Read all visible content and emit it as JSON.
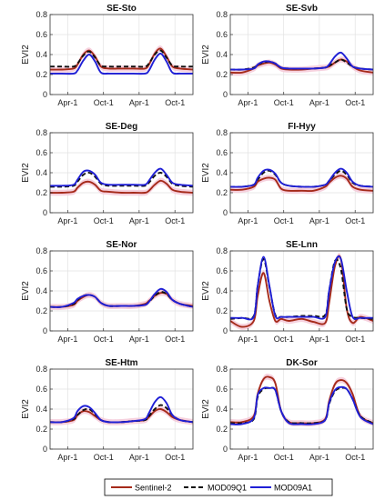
{
  "chart_data": {
    "type": "line",
    "ylabel": "EVI2",
    "xlim": [
      0,
      730
    ],
    "ylim": [
      0,
      0.8
    ],
    "yticks": [
      0,
      0.2,
      0.4,
      0.6,
      0.8
    ],
    "ytick_labels": [
      "0",
      "0.2",
      "0.4",
      "0.6",
      "0.8"
    ],
    "xticks": [
      90,
      273,
      455,
      638
    ],
    "xtick_labels": [
      "Apr-1",
      "Oct-1",
      "Apr-1",
      "Oct-1"
    ],
    "grid": true,
    "legend_position": "bottom",
    "series_styles": [
      {
        "name": "Sentinel-2",
        "color": "#a52a1a",
        "dash": ""
      },
      {
        "name": "MOD09Q1",
        "color": "#111111",
        "dash": "5,3"
      },
      {
        "name": "MOD09A1",
        "color": "#1f1fd6",
        "dash": ""
      }
    ],
    "envelope_color": "#f4c9d8",
    "x": [
      0,
      60,
      120,
      140,
      170,
      200,
      230,
      260,
      300,
      365,
      425,
      485,
      505,
      535,
      565,
      595,
      625,
      665,
      730
    ],
    "panels": [
      {
        "title": "SE-Sto",
        "series": [
          {
            "name": "Sentinel-2",
            "values": [
              0.25,
              0.25,
              0.26,
              0.3,
              0.4,
              0.44,
              0.38,
              0.28,
              0.26,
              0.26,
              0.26,
              0.26,
              0.3,
              0.41,
              0.46,
              0.38,
              0.28,
              0.26,
              0.25
            ]
          },
          {
            "name": "MOD09Q1",
            "values": [
              0.28,
              0.28,
              0.28,
              0.31,
              0.39,
              0.43,
              0.37,
              0.29,
              0.28,
              0.28,
              0.28,
              0.28,
              0.31,
              0.4,
              0.44,
              0.37,
              0.29,
              0.28,
              0.28
            ]
          },
          {
            "name": "MOD09A1",
            "values": [
              0.21,
              0.21,
              0.21,
              0.24,
              0.34,
              0.4,
              0.33,
              0.22,
              0.21,
              0.21,
              0.21,
              0.21,
              0.24,
              0.35,
              0.41,
              0.33,
              0.22,
              0.21,
              0.21
            ]
          }
        ]
      },
      {
        "title": "SE-Svb",
        "series": [
          {
            "name": "Sentinel-2",
            "values": [
              0.22,
              0.22,
              0.26,
              0.29,
              0.31,
              0.32,
              0.3,
              0.26,
              0.25,
              0.25,
              0.26,
              0.27,
              0.28,
              0.32,
              0.35,
              0.33,
              0.28,
              0.24,
              0.22
            ]
          },
          {
            "name": "MOD09Q1",
            "values": [
              0.25,
              0.25,
              0.27,
              0.3,
              0.32,
              0.33,
              0.31,
              0.27,
              0.26,
              0.26,
              0.26,
              0.27,
              0.29,
              0.32,
              0.35,
              0.32,
              0.28,
              0.26,
              0.25
            ]
          },
          {
            "name": "MOD09A1",
            "values": [
              0.25,
              0.25,
              0.26,
              0.3,
              0.33,
              0.33,
              0.31,
              0.27,
              0.26,
              0.26,
              0.26,
              0.27,
              0.3,
              0.38,
              0.42,
              0.36,
              0.28,
              0.26,
              0.25
            ]
          }
        ]
      },
      {
        "title": "SE-Deg",
        "series": [
          {
            "name": "Sentinel-2",
            "values": [
              0.2,
              0.2,
              0.21,
              0.25,
              0.3,
              0.31,
              0.28,
              0.22,
              0.21,
              0.2,
              0.2,
              0.2,
              0.22,
              0.28,
              0.32,
              0.29,
              0.23,
              0.21,
              0.2
            ]
          },
          {
            "name": "MOD09Q1",
            "values": [
              0.26,
              0.26,
              0.27,
              0.31,
              0.38,
              0.4,
              0.36,
              0.29,
              0.27,
              0.27,
              0.27,
              0.27,
              0.3,
              0.37,
              0.4,
              0.36,
              0.29,
              0.27,
              0.26
            ]
          },
          {
            "name": "MOD09A1",
            "values": [
              0.27,
              0.27,
              0.28,
              0.33,
              0.41,
              0.42,
              0.38,
              0.3,
              0.28,
              0.28,
              0.28,
              0.28,
              0.32,
              0.4,
              0.44,
              0.38,
              0.3,
              0.28,
              0.27
            ]
          }
        ]
      },
      {
        "title": "FI-Hyy",
        "series": [
          {
            "name": "Sentinel-2",
            "values": [
              0.23,
              0.23,
              0.26,
              0.31,
              0.34,
              0.35,
              0.33,
              0.24,
              0.22,
              0.22,
              0.22,
              0.26,
              0.3,
              0.35,
              0.37,
              0.34,
              0.26,
              0.23,
              0.22
            ]
          },
          {
            "name": "MOD09Q1",
            "values": [
              0.26,
              0.26,
              0.28,
              0.33,
              0.4,
              0.42,
              0.38,
              0.3,
              0.27,
              0.26,
              0.26,
              0.28,
              0.32,
              0.38,
              0.42,
              0.38,
              0.3,
              0.27,
              0.26
            ]
          },
          {
            "name": "MOD09A1",
            "values": [
              0.26,
              0.26,
              0.28,
              0.35,
              0.42,
              0.43,
              0.39,
              0.3,
              0.27,
              0.26,
              0.26,
              0.28,
              0.32,
              0.4,
              0.44,
              0.4,
              0.31,
              0.27,
              0.26
            ]
          }
        ]
      },
      {
        "title": "SE-Nor",
        "series": [
          {
            "name": "Sentinel-2",
            "values": [
              0.24,
              0.24,
              0.26,
              0.3,
              0.34,
              0.36,
              0.34,
              0.28,
              0.25,
              0.25,
              0.25,
              0.27,
              0.3,
              0.35,
              0.38,
              0.37,
              0.31,
              0.27,
              0.25
            ]
          },
          {
            "name": "MOD09Q1",
            "values": [
              0.24,
              0.24,
              0.27,
              0.31,
              0.35,
              0.36,
              0.34,
              0.28,
              0.25,
              0.25,
              0.25,
              0.26,
              0.29,
              0.35,
              0.39,
              0.37,
              0.31,
              0.27,
              0.24
            ]
          },
          {
            "name": "MOD09A1",
            "values": [
              0.24,
              0.24,
              0.28,
              0.32,
              0.35,
              0.36,
              0.34,
              0.28,
              0.25,
              0.25,
              0.25,
              0.26,
              0.29,
              0.37,
              0.42,
              0.39,
              0.31,
              0.27,
              0.24
            ]
          }
        ]
      },
      {
        "title": "SE-Lnn",
        "series": [
          {
            "name": "Sentinel-2",
            "values": [
              0.1,
              0.04,
              0.1,
              0.35,
              0.58,
              0.3,
              0.1,
              0.12,
              0.1,
              0.12,
              0.09,
              0.08,
              0.28,
              0.65,
              0.72,
              0.22,
              0.08,
              0.14,
              0.1
            ]
          },
          {
            "name": "MOD09Q1",
            "values": [
              0.12,
              0.13,
              0.15,
              0.45,
              0.72,
              0.44,
              0.16,
              0.14,
              0.14,
              0.15,
              0.15,
              0.16,
              0.4,
              0.7,
              0.62,
              0.22,
              0.14,
              0.13,
              0.12
            ]
          },
          {
            "name": "MOD09A1",
            "values": [
              0.13,
              0.13,
              0.14,
              0.45,
              0.74,
              0.45,
              0.15,
              0.14,
              0.14,
              0.14,
              0.14,
              0.14,
              0.4,
              0.69,
              0.72,
              0.4,
              0.14,
              0.13,
              0.13
            ]
          }
        ]
      },
      {
        "title": "SE-Htm",
        "series": [
          {
            "name": "Sentinel-2",
            "values": [
              0.27,
              0.27,
              0.29,
              0.34,
              0.38,
              0.37,
              0.33,
              0.29,
              0.27,
              0.27,
              0.28,
              0.29,
              0.32,
              0.38,
              0.4,
              0.37,
              0.32,
              0.29,
              0.27
            ]
          },
          {
            "name": "MOD09Q1",
            "values": [
              0.27,
              0.27,
              0.3,
              0.34,
              0.39,
              0.4,
              0.35,
              0.29,
              0.27,
              0.27,
              0.28,
              0.29,
              0.33,
              0.4,
              0.44,
              0.41,
              0.34,
              0.29,
              0.27
            ]
          },
          {
            "name": "MOD09A1",
            "values": [
              0.27,
              0.27,
              0.31,
              0.38,
              0.43,
              0.42,
              0.36,
              0.29,
              0.27,
              0.27,
              0.28,
              0.3,
              0.36,
              0.47,
              0.52,
              0.46,
              0.34,
              0.29,
              0.27
            ]
          }
        ]
      },
      {
        "title": "DK-Sor",
        "series": [
          {
            "name": "Sentinel-2",
            "values": [
              0.27,
              0.27,
              0.33,
              0.55,
              0.7,
              0.72,
              0.66,
              0.38,
              0.27,
              0.26,
              0.26,
              0.3,
              0.48,
              0.65,
              0.69,
              0.66,
              0.55,
              0.33,
              0.26
            ]
          },
          {
            "name": "MOD09Q1",
            "values": [
              0.26,
              0.26,
              0.3,
              0.52,
              0.6,
              0.61,
              0.59,
              0.38,
              0.27,
              0.26,
              0.26,
              0.29,
              0.45,
              0.58,
              0.61,
              0.6,
              0.5,
              0.33,
              0.26
            ]
          },
          {
            "name": "MOD09A1",
            "values": [
              0.25,
              0.25,
              0.31,
              0.54,
              0.61,
              0.61,
              0.59,
              0.38,
              0.26,
              0.25,
              0.25,
              0.29,
              0.46,
              0.59,
              0.62,
              0.6,
              0.5,
              0.32,
              0.25
            ]
          }
        ]
      }
    ],
    "legend": [
      "Sentinel-2",
      "MOD09Q1",
      "MOD09A1"
    ]
  }
}
